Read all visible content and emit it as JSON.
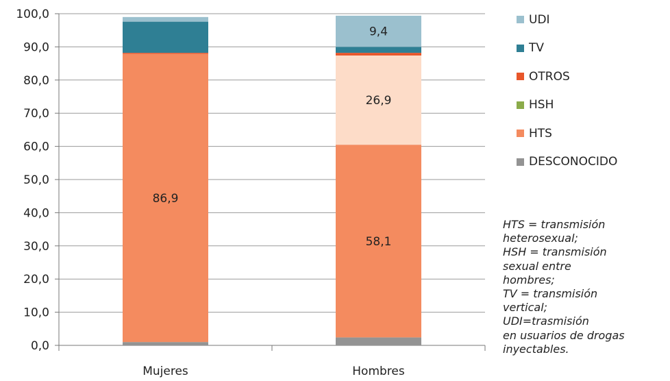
{
  "chart_data": {
    "type": "bar",
    "stacked": true,
    "categories": [
      "Mujeres",
      "Hombres"
    ],
    "ylim": [
      0,
      100
    ],
    "yticks": [
      "0,0",
      "10,0",
      "20,0",
      "30,0",
      "40,0",
      "50,0",
      "60,0",
      "70,0",
      "80,0",
      "90,0",
      "100,0"
    ],
    "grid": true,
    "legend_position": "right",
    "series": [
      {
        "name": "DESCONOCIDO",
        "color": "#939393",
        "values": [
          1.0,
          2.4
        ]
      },
      {
        "name": "HTS",
        "color": "#F48B5F",
        "values": [
          86.9,
          58.1
        ],
        "labels": [
          "86,9",
          "58,1"
        ]
      },
      {
        "name": "HSH",
        "color": "#8BAB4A",
        "values": [
          0.0,
          26.9
        ],
        "labels": [
          "",
          "26,9"
        ],
        "colors": [
          "#8BAB4A",
          "#FDDCC8"
        ]
      },
      {
        "name": "OTROS",
        "color": "#E8562A",
        "values": [
          0.3,
          0.8
        ]
      },
      {
        "name": "TV",
        "color": "#2F7F94",
        "values": [
          9.4,
          1.8
        ]
      },
      {
        "name": "UDI",
        "color": "#9BC0CE",
        "values": [
          1.4,
          9.4
        ],
        "labels": [
          "",
          "9,4"
        ]
      }
    ],
    "note": [
      "HTS = transmisión",
      "heterosexual;",
      "HSH = transmisión",
      "sexual entre",
      "hombres;",
      "TV = transmisión",
      "vertical;",
      "UDI=trasmisión",
      "en usuarios de drogas",
      "inyectables."
    ]
  }
}
